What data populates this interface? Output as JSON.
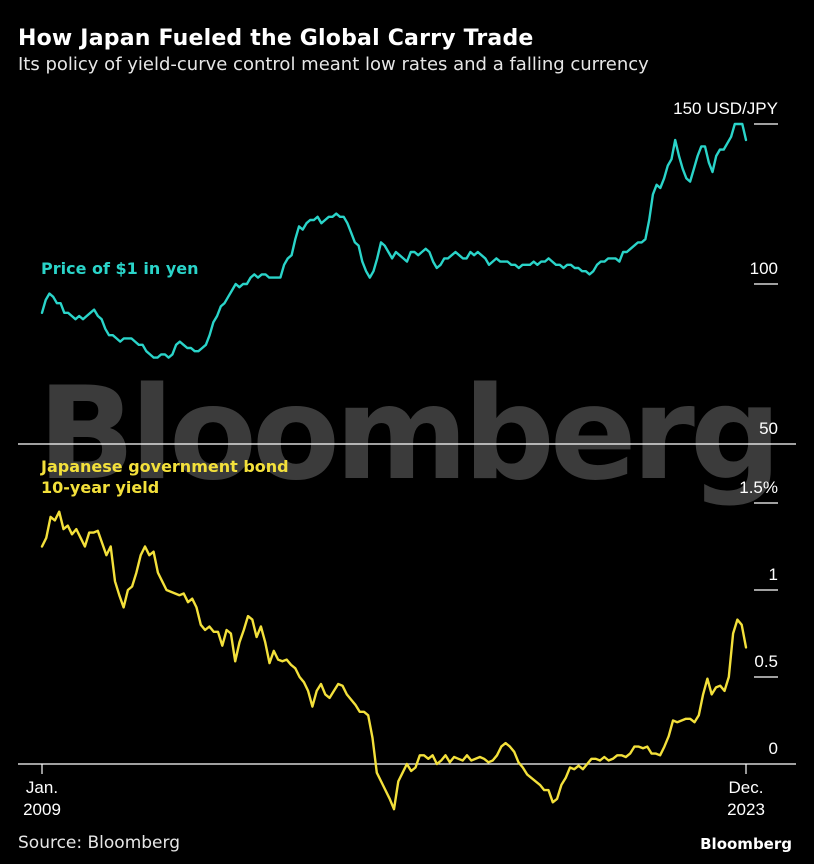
{
  "header": {
    "title": "How Japan Fueled the Global Carry Trade",
    "subtitle": "Its policy of yield-curve control meant low rates and a falling currency"
  },
  "footer": {
    "source": "Source: Bloomberg",
    "logo": "Bloomberg"
  },
  "watermark": "Bloomberg",
  "colors": {
    "background": "#000000",
    "usdjpy": "#2ad4c9",
    "jgb": "#f3e03b",
    "watermark": "#3b3b3b"
  },
  "chart_data": [
    {
      "type": "line",
      "series": [
        {
          "name": "Price of $1 in yen",
          "color": "#2ad4c9",
          "values": [
            91,
            95,
            97,
            96,
            94,
            94,
            91,
            91,
            90,
            89,
            90,
            89,
            90,
            91,
            92,
            90,
            89,
            86,
            84,
            84,
            83,
            82,
            83,
            83,
            83,
            82,
            81,
            81,
            79,
            78,
            77,
            77,
            78,
            78,
            77,
            78,
            81,
            82,
            81,
            80,
            80,
            79,
            79,
            80,
            81,
            84,
            88,
            90,
            93,
            94,
            96,
            98,
            100,
            99,
            100,
            100,
            102,
            103,
            102,
            103,
            103,
            102,
            102,
            102,
            102,
            106,
            108,
            109,
            114,
            118,
            117,
            119,
            120,
            120,
            121,
            119,
            120,
            121,
            121,
            122,
            121,
            121,
            119,
            116,
            113,
            112,
            107,
            104,
            102,
            104,
            108,
            113,
            112,
            110,
            108,
            110,
            109,
            108,
            107,
            110,
            110,
            109,
            110,
            111,
            110,
            107,
            105,
            106,
            108,
            108,
            109,
            110,
            109,
            108,
            108,
            110,
            109,
            110,
            109,
            108,
            106,
            107,
            108,
            107,
            107,
            107,
            106,
            106,
            105,
            106,
            106,
            106,
            107,
            106,
            107,
            107,
            108,
            107,
            106,
            106,
            105,
            106,
            106,
            105,
            105,
            104,
            104,
            103,
            104,
            106,
            107,
            107,
            108,
            108,
            108,
            107,
            110,
            110,
            111,
            112,
            113,
            113,
            114,
            120,
            128,
            131,
            130,
            133,
            137,
            139,
            145,
            140,
            136,
            133,
            132,
            136,
            140,
            143,
            143,
            138,
            135,
            140,
            142,
            142,
            144,
            146,
            150,
            150,
            150,
            145
          ]
        }
      ],
      "x_axis_labels": [
        "Jan.\n2009",
        "Dec.\n2023"
      ],
      "y_ticks": [
        50,
        100,
        150
      ],
      "y_tick_labels": [
        "50",
        "100",
        "150 USD/JPY"
      ],
      "ylim": [
        50,
        150
      ]
    },
    {
      "type": "line",
      "series": [
        {
          "name": "Japanese government bond 10-year yield",
          "color": "#f3e03b",
          "values": [
            1.25,
            1.3,
            1.42,
            1.4,
            1.45,
            1.35,
            1.37,
            1.32,
            1.35,
            1.3,
            1.25,
            1.33,
            1.33,
            1.34,
            1.27,
            1.2,
            1.25,
            1.05,
            0.97,
            0.9,
            1.0,
            1.02,
            1.1,
            1.2,
            1.25,
            1.2,
            1.22,
            1.1,
            1.05,
            1.0,
            0.99,
            0.98,
            0.97,
            0.98,
            0.93,
            0.95,
            0.9,
            0.8,
            0.77,
            0.79,
            0.76,
            0.76,
            0.68,
            0.77,
            0.75,
            0.59,
            0.7,
            0.77,
            0.85,
            0.83,
            0.73,
            0.79,
            0.7,
            0.58,
            0.65,
            0.6,
            0.59,
            0.6,
            0.57,
            0.55,
            0.5,
            0.47,
            0.42,
            0.33,
            0.42,
            0.46,
            0.4,
            0.38,
            0.42,
            0.46,
            0.45,
            0.4,
            0.37,
            0.34,
            0.3,
            0.3,
            0.28,
            0.15,
            -0.05,
            -0.1,
            -0.15,
            -0.2,
            -0.26,
            -0.1,
            -0.05,
            0.0,
            -0.04,
            -0.02,
            0.05,
            0.05,
            0.03,
            0.05,
            0.0,
            0.02,
            0.05,
            0.01,
            0.04,
            0.03,
            0.02,
            0.05,
            0.02,
            0.03,
            0.04,
            0.03,
            0.01,
            0.02,
            0.05,
            0.1,
            0.12,
            0.1,
            0.07,
            0.01,
            -0.02,
            -0.06,
            -0.08,
            -0.1,
            -0.12,
            -0.15,
            -0.15,
            -0.22,
            -0.2,
            -0.12,
            -0.08,
            -0.02,
            -0.03,
            -0.01,
            -0.03,
            0.0,
            0.03,
            0.03,
            0.02,
            0.04,
            0.02,
            0.03,
            0.05,
            0.05,
            0.04,
            0.06,
            0.1,
            0.1,
            0.09,
            0.1,
            0.06,
            0.06,
            0.05,
            0.1,
            0.16,
            0.25,
            0.24,
            0.25,
            0.26,
            0.26,
            0.24,
            0.28,
            0.4,
            0.49,
            0.4,
            0.44,
            0.45,
            0.42,
            0.5,
            0.75,
            0.83,
            0.8,
            0.67
          ]
        }
      ],
      "x_axis_labels": [
        "Jan.\n2009",
        "Dec.\n2023"
      ],
      "y_ticks": [
        0,
        0.5,
        1,
        1.5
      ],
      "y_tick_labels": [
        "0",
        "0.5",
        "1",
        "1.5%"
      ],
      "ylim": [
        -0.25,
        1.5
      ]
    }
  ]
}
